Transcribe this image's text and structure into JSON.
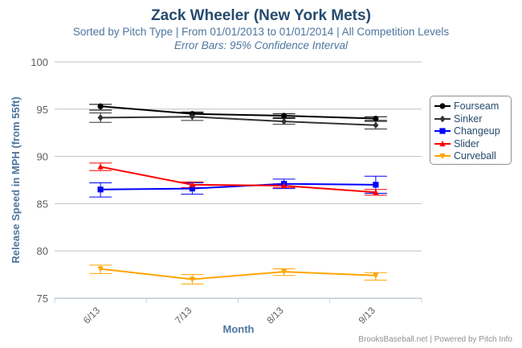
{
  "header": {
    "title": "Zack Wheeler (New York Mets)",
    "subtitle": "Sorted by Pitch Type | From 01/01/2013 to 01/01/2014 | All Competition Levels",
    "note": "Error Bars: 95% Confidence Interval"
  },
  "credits": "BrooksBaseball.net | Powered by Pitch Info",
  "chart_data": {
    "type": "line",
    "xlabel": "Month",
    "ylabel": "Release Speed in MPH (from 55ft)",
    "categories": [
      "6/13",
      "7/13",
      "8/13",
      "9/13"
    ],
    "ylim": [
      75,
      100
    ],
    "yticks": [
      75,
      80,
      85,
      90,
      95,
      100
    ],
    "grid": true,
    "legend_position": "right",
    "series": [
      {
        "name": "Fourseam",
        "color": "#000000",
        "marker": "circle",
        "values": [
          95.3,
          94.5,
          94.3,
          94.0
        ],
        "err_low": [
          94.9,
          94.2,
          94.1,
          93.8
        ],
        "err_high": [
          95.5,
          94.7,
          94.5,
          94.2
        ]
      },
      {
        "name": "Sinker",
        "color": "#333333",
        "marker": "diamond",
        "values": [
          94.1,
          94.2,
          93.7,
          93.3
        ],
        "err_low": [
          93.6,
          93.8,
          93.4,
          92.9
        ],
        "err_high": [
          94.6,
          94.6,
          94.0,
          93.7
        ]
      },
      {
        "name": "Changeup",
        "color": "#0000ff",
        "marker": "square",
        "values": [
          86.5,
          86.6,
          87.1,
          87.0
        ],
        "err_low": [
          85.7,
          86.0,
          86.6,
          86.1
        ],
        "err_high": [
          87.2,
          87.2,
          87.6,
          87.9
        ]
      },
      {
        "name": "Slider",
        "color": "#ff0000",
        "marker": "triangle",
        "values": [
          88.9,
          87.0,
          86.9,
          86.2
        ],
        "err_low": [
          88.5,
          86.7,
          86.7,
          85.9
        ],
        "err_high": [
          89.3,
          87.3,
          87.1,
          86.5
        ]
      },
      {
        "name": "Curveball",
        "color": "#ffa500",
        "marker": "triangle-down",
        "values": [
          78.1,
          77.0,
          77.8,
          77.4
        ],
        "err_low": [
          77.6,
          76.5,
          77.4,
          76.9
        ],
        "err_high": [
          78.5,
          77.5,
          78.1,
          77.7
        ]
      }
    ]
  }
}
